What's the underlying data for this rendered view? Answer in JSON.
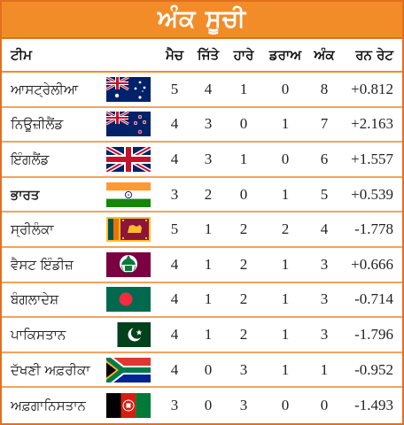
{
  "title": "ਅੰਕ ਸੂਚੀ",
  "headers": {
    "team": "ਟੀਮ",
    "matches": "ਮੈਚ",
    "won": "ਜਿੱਤੇ",
    "lost": "ਹਾਰੇ",
    "draw": "ਡਰਾਅ",
    "points": "ਅੰਕ",
    "run_rate": "ਰਨ ਰੇਟ"
  },
  "rows": [
    {
      "team": "ਆਸਟ੍ਰੇਲੀਆ",
      "flag": "australia-flag-icon",
      "m": "5",
      "w": "4",
      "l": "1",
      "d": "0",
      "p": "8",
      "rr": "+0.812",
      "bold": false
    },
    {
      "team": "ਨਿਊਜ਼ੀਲੈਂਡ",
      "flag": "new-zealand-flag-icon",
      "m": "4",
      "w": "3",
      "l": "0",
      "d": "1",
      "p": "7",
      "rr": "+2.163",
      "bold": false
    },
    {
      "team": "ਇੰਗਲੈਂਡ",
      "flag": "england-flag-icon",
      "m": "4",
      "w": "3",
      "l": "1",
      "d": "0",
      "p": "6",
      "rr": "+1.557",
      "bold": false
    },
    {
      "team": "ਭਾਰਤ",
      "flag": "india-flag-icon",
      "m": "3",
      "w": "2",
      "l": "0",
      "d": "1",
      "p": "5",
      "rr": "+0.539",
      "bold": true
    },
    {
      "team": "ਸ੍ਰੀਲੰਕਾ",
      "flag": "sri-lanka-flag-icon",
      "m": "5",
      "w": "1",
      "l": "2",
      "d": "2",
      "p": "4",
      "rr": "-1.778",
      "bold": false
    },
    {
      "team": "ਵੈਸਟ ਇੰਡੀਜ਼",
      "flag": "west-indies-flag-icon",
      "m": "4",
      "w": "1",
      "l": "2",
      "d": "1",
      "p": "3",
      "rr": "+0.666",
      "bold": false
    },
    {
      "team": "ਬੰਗਲਾਦੇਸ਼",
      "flag": "bangladesh-flag-icon",
      "m": "4",
      "w": "1",
      "l": "2",
      "d": "1",
      "p": "3",
      "rr": "-0.714",
      "bold": false
    },
    {
      "team": "ਪਾਕਿਸਤਾਨ",
      "flag": "pakistan-flag-icon",
      "m": "4",
      "w": "1",
      "l": "2",
      "d": "1",
      "p": "3",
      "rr": "-1.796",
      "bold": false
    },
    {
      "team": "ਦੱਖਣੀ ਅਫ਼ਰੀਕਾ",
      "flag": "south-africa-flag-icon",
      "m": "4",
      "w": "0",
      "l": "3",
      "d": "1",
      "p": "1",
      "rr": "-0.952",
      "bold": false
    },
    {
      "team": "ਅਫ਼ਗਾਨਿਸਤਾਨ",
      "flag": "afghanistan-flag-icon",
      "m": "3",
      "w": "0",
      "l": "3",
      "d": "0",
      "p": "0",
      "rr": "-1.493",
      "bold": false
    }
  ]
}
